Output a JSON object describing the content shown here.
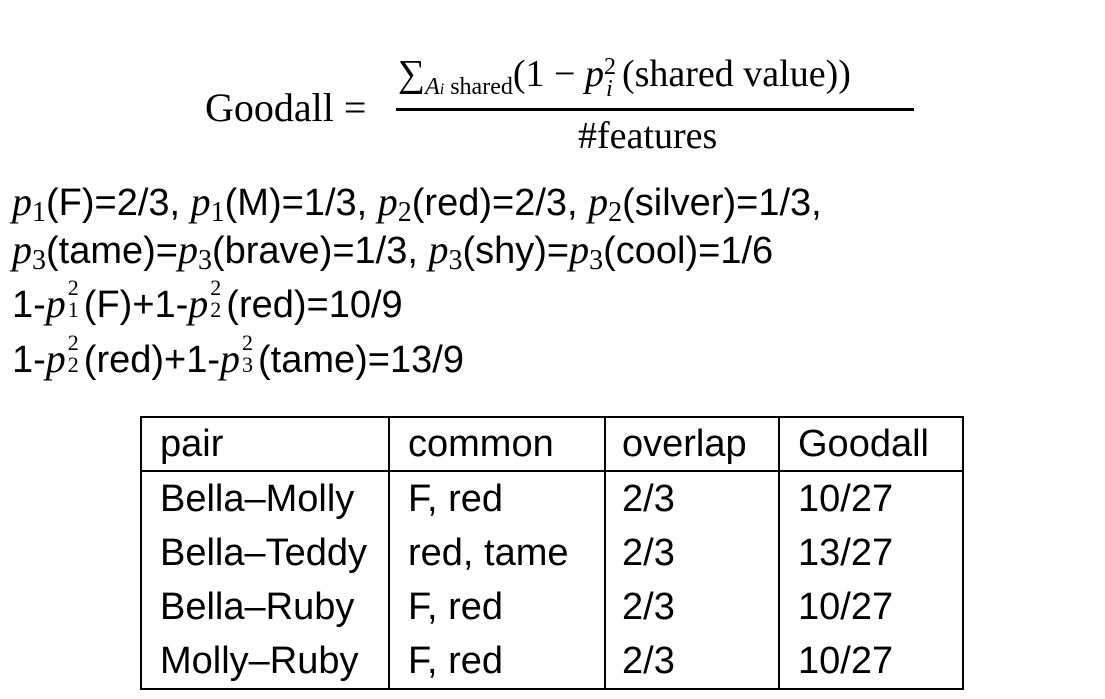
{
  "formula": {
    "label": "Goodall =",
    "sum_symbol": "∑",
    "sum_index_var": "A",
    "sum_index_sub": "i",
    "sum_index_text": "shared",
    "numerator_open": "(1 − ",
    "p_var": "p",
    "p_sup": "2",
    "p_sub": "i",
    "numerator_rest": "(shared value))",
    "denominator": "#features"
  },
  "line1": {
    "p1": "p",
    "n1": "1",
    "t1": "(F)=2/3, ",
    "p2": "p",
    "n2": "1",
    "t2": "(M)=1/3, ",
    "p3": "p",
    "n3": "2",
    "t3": "(red)=2/3, ",
    "p4": "p",
    "n4": "2",
    "t4": "(silver)=1/3,"
  },
  "line2": {
    "p1": "p",
    "n1": "3",
    "t1": "(tame)=",
    "p2": "p",
    "n2": "3",
    "t2": "(brave)=1/3, ",
    "p3": "p",
    "n3": "3",
    "t3": "(shy)=",
    "p4": "p",
    "n4": "3",
    "t4": "(cool)=1/6"
  },
  "line3": {
    "pre": "1-",
    "p1": "p",
    "sup1": "2",
    "sub1": "1",
    "t1": "(F)+1-",
    "p2": "p",
    "sup2": "2",
    "sub2": "2",
    "t2": "(red)=10/9"
  },
  "line4": {
    "pre": "1-",
    "p1": "p",
    "sup1": "2",
    "sub1": "2",
    "t1": "(red)+1-",
    "p2": "p",
    "sup2": "2",
    "sub2": "3",
    "t2": "(tame)=13/9"
  },
  "table": {
    "headers": [
      "pair",
      "common",
      "overlap",
      "Goodall"
    ],
    "rows": [
      [
        "Bella–Molly",
        "F, red",
        "2/3",
        "10/27"
      ],
      [
        "Bella–Teddy",
        "red, tame",
        "2/3",
        "13/27"
      ],
      [
        "Bella–Ruby",
        "F, red",
        "2/3",
        "10/27"
      ],
      [
        "Molly–Ruby",
        "F, red",
        "2/3",
        "10/27"
      ]
    ]
  }
}
